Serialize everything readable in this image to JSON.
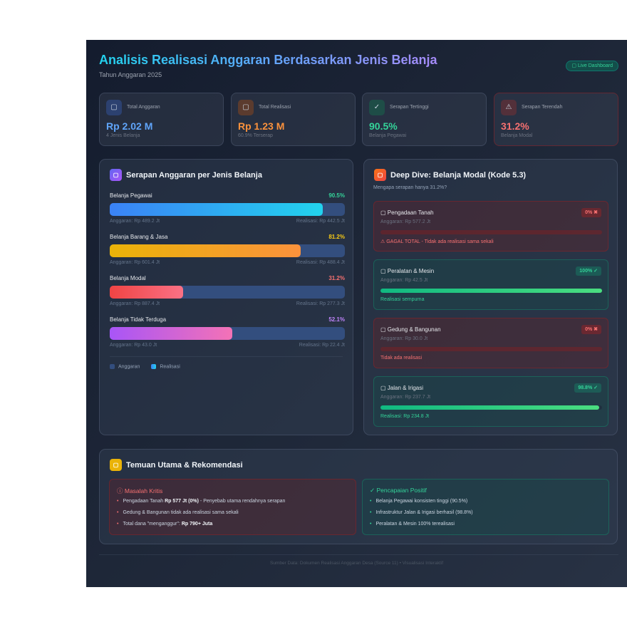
{
  "header": {
    "title": "Analisis Realisasi Anggaran Berdasarkan Jenis Belanja",
    "subtitle": "Tahun Anggaran 2025",
    "badge": "▢ Live Dashboard"
  },
  "kpis": [
    {
      "icon": "wallet-icon",
      "glyph": "▢",
      "label": "Total Anggaran",
      "value": "Rp 2.02 M",
      "sub": "4 Jenis Belanja",
      "color": "#60a5fa",
      "bg": "#2c4170"
    },
    {
      "icon": "money-icon",
      "glyph": "▢",
      "label": "Total Realisasi",
      "value": "Rp 1.23 M",
      "sub": "60.9% Terserap",
      "color": "#fb923c",
      "bg": "#5b3b2e"
    },
    {
      "icon": "check-icon",
      "glyph": "✓",
      "label": "Serapan Tertinggi",
      "value": "90.5%",
      "sub": "Belanja Pegawai",
      "color": "#34d399",
      "bg": "#1e4d47"
    },
    {
      "icon": "warning-icon",
      "glyph": "⚠",
      "label": "Serapan Terendah",
      "value": "31.2%",
      "sub": "Belanja Modal",
      "color": "#f87171",
      "bg": "#53303a"
    }
  ],
  "serapan": {
    "title": "Serapan Anggaran per Jenis Belanja",
    "icon": "chart-icon",
    "items": [
      {
        "name": "Belanja Pegawai",
        "pct": "90.5%",
        "value": 90.5,
        "anggaran": "Anggaran: Rp 489.2 Jt",
        "realisasi": "Realisasi: Rp 442.5 Jt",
        "color": "#34d399",
        "grad": [
          "#3b82f6",
          "#22d3ee"
        ]
      },
      {
        "name": "Belanja Barang & Jasa",
        "pct": "81.2%",
        "value": 81.2,
        "anggaran": "Anggaran: Rp 601.4 Jt",
        "realisasi": "Realisasi: Rp 488.4 Jt",
        "color": "#facc15",
        "grad": [
          "#eab308",
          "#fb923c"
        ]
      },
      {
        "name": "Belanja Modal",
        "pct": "31.2%",
        "value": 31.2,
        "anggaran": "Anggaran: Rp 887.4 Jt",
        "realisasi": "Realisasi: Rp 277.3 Jt",
        "color": "#f87171",
        "grad": [
          "#ef4444",
          "#fb7185"
        ]
      },
      {
        "name": "Belanja Tidak Terduga",
        "pct": "52.1%",
        "value": 52.1,
        "anggaran": "Anggaran: Rp 43.0 Jt",
        "realisasi": "Realisasi: Rp 22.4 Jt",
        "color": "#c084fc",
        "grad": [
          "#a855f7",
          "#f472b6"
        ]
      }
    ],
    "legend": [
      "Anggaran",
      "Realisasi"
    ]
  },
  "deepdive": {
    "title": "Deep Dive: Belanja Modal (Kode 5.3)",
    "subtitle": "Mengapa serapan hanya 31.2%?",
    "items": [
      {
        "name": "▢ Pengadaan Tanah",
        "badge": "0% ✖",
        "status": "bad",
        "value": 0,
        "anggaran": "Anggaran: Rp 577.2 Jt",
        "note": "⚠ GAGAL TOTAL - Tidak ada realisasi sama sekali"
      },
      {
        "name": "▢ Peralatan & Mesin",
        "badge": "100% ✓",
        "status": "good",
        "value": 100,
        "anggaran": "Anggaran: Rp 42.5 Jt",
        "note": "Realisasi sempurna"
      },
      {
        "name": "▢ Gedung & Bangunan",
        "badge": "0% ✖",
        "status": "bad",
        "value": 0,
        "anggaran": "Anggaran: Rp 30.0 Jt",
        "note": "Tidak ada realisasi"
      },
      {
        "name": "▢ Jalan & Irigasi",
        "badge": "98.8% ✓",
        "status": "good",
        "value": 98.8,
        "anggaran": "Anggaran: Rp 237.7 Jt",
        "note": "Realisasi: Rp 234.8 Jt"
      }
    ]
  },
  "temuan": {
    "title": "Temuan Utama & Rekomendasi",
    "kritis": {
      "title": "ⓘ Masalah Kritis",
      "items": [
        {
          "pre": "Pengadaan Tanah ",
          "bold": "Rp 577 Jt (0%)",
          "post": " - Penyebab utama rendahnya serapan"
        },
        {
          "pre": "Gedung & Bangunan tidak ada realisasi sama sekali",
          "bold": "",
          "post": ""
        },
        {
          "pre": "Total dana \"menganggur\": ",
          "bold": "Rp 790+ Juta",
          "post": ""
        }
      ]
    },
    "positif": {
      "title": "✓ Pencapaian Positif",
      "items": [
        "Belanja Pegawai konsisten tinggi (90.5%)",
        "Infrastruktur Jalan & Irigasi berhasil (98.8%)",
        "Peralatan & Mesin 100% terealisasi"
      ]
    }
  },
  "footer": "Sumber Data: Dokumen Realisasi Anggaran Desa (Source 11) • Visualisasi Interaktif"
}
